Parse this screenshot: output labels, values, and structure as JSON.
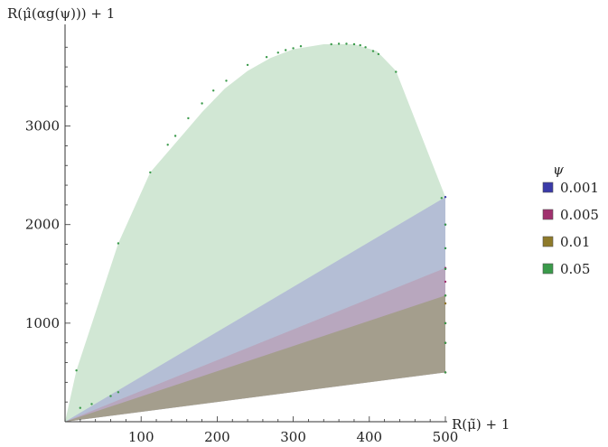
{
  "chart_data": {
    "type": "area",
    "xlabel": "R(μ̃) + 1",
    "ylabel": "R(μ̂(αg(ψ))) + 1",
    "xlim": [
      0,
      505
    ],
    "ylim": [
      0,
      3950
    ],
    "x_ticks": [
      100,
      200,
      300,
      400,
      500
    ],
    "y_ticks": [
      1000,
      2000,
      3000
    ],
    "grid": false,
    "legend_title": "ψ",
    "legend_position": "right",
    "series": [
      {
        "name": "0.001",
        "color": "#3a3aa8",
        "fill": "#aab0d6",
        "boundary": [
          [
            0,
            0
          ],
          [
            500,
            2280
          ],
          [
            500,
            500
          ],
          [
            0,
            0
          ]
        ],
        "points": [
          [
            500,
            2280
          ],
          [
            500,
            2000
          ],
          [
            500,
            1760
          ],
          [
            500,
            1550
          ],
          [
            500,
            1280
          ],
          [
            500,
            1000
          ],
          [
            500,
            800
          ],
          [
            500,
            500
          ]
        ]
      },
      {
        "name": "0.005",
        "color": "#a0306e",
        "fill": "#b99fb5",
        "boundary": [
          [
            0,
            0
          ],
          [
            500,
            1560
          ],
          [
            500,
            500
          ],
          [
            0,
            0
          ]
        ],
        "points": [
          [
            500,
            1560
          ],
          [
            500,
            1420
          ],
          [
            500,
            1200
          ],
          [
            500,
            1000
          ],
          [
            500,
            800
          ],
          [
            500,
            500
          ]
        ]
      },
      {
        "name": "0.01",
        "color": "#8e7a2a",
        "fill": "#9d9b7c",
        "boundary": [
          [
            0,
            0
          ],
          [
            500,
            1280
          ],
          [
            500,
            500
          ],
          [
            0,
            0
          ]
        ],
        "points": [
          [
            500,
            1280
          ],
          [
            500,
            1200
          ],
          [
            500,
            1000
          ],
          [
            500,
            800
          ],
          [
            500,
            500
          ]
        ]
      },
      {
        "name": "0.05",
        "color": "#3a9a4a",
        "fill": "#cfe6d2",
        "boundary": [
          [
            0,
            0
          ],
          [
            15,
            520
          ],
          [
            70,
            1810
          ],
          [
            112,
            2530
          ],
          [
            150,
            2870
          ],
          [
            180,
            3140
          ],
          [
            210,
            3380
          ],
          [
            240,
            3560
          ],
          [
            270,
            3690
          ],
          [
            300,
            3780
          ],
          [
            340,
            3830
          ],
          [
            380,
            3830
          ],
          [
            410,
            3760
          ],
          [
            435,
            3560
          ],
          [
            500,
            2280
          ],
          [
            500,
            500
          ],
          [
            0,
            0
          ]
        ],
        "points": [
          [
            15,
            520
          ],
          [
            70,
            1810
          ],
          [
            112,
            2530
          ],
          [
            135,
            2810
          ],
          [
            145,
            2900
          ],
          [
            162,
            3080
          ],
          [
            180,
            3230
          ],
          [
            195,
            3360
          ],
          [
            212,
            3460
          ],
          [
            240,
            3620
          ],
          [
            265,
            3700
          ],
          [
            280,
            3745
          ],
          [
            290,
            3770
          ],
          [
            300,
            3790
          ],
          [
            310,
            3810
          ],
          [
            350,
            3830
          ],
          [
            360,
            3835
          ],
          [
            370,
            3835
          ],
          [
            380,
            3830
          ],
          [
            388,
            3820
          ],
          [
            395,
            3800
          ],
          [
            405,
            3760
          ],
          [
            412,
            3730
          ],
          [
            435,
            3550
          ],
          [
            495,
            2270
          ],
          [
            20,
            140
          ],
          [
            35,
            180
          ],
          [
            60,
            260
          ],
          [
            70,
            300
          ],
          [
            500,
            2000
          ],
          [
            500,
            1760
          ],
          [
            500,
            1550
          ],
          [
            500,
            1280
          ],
          [
            500,
            1000
          ],
          [
            500,
            800
          ],
          [
            500,
            500
          ]
        ]
      }
    ]
  }
}
